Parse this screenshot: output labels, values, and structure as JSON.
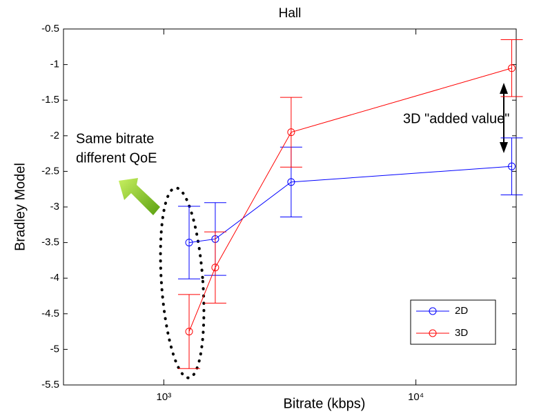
{
  "chart_data": {
    "type": "line",
    "title": "Hall",
    "x_label": "Bitrate (kbps)",
    "y_label": "Bradley Model",
    "x_scale": "log",
    "x": [
      1260,
      1600,
      3200,
      24000
    ],
    "series": [
      {
        "name": "2D",
        "color": "#0000ff",
        "values": [
          -3.5,
          -3.45,
          -2.65,
          -2.43
        ],
        "errors": [
          0.51,
          0.51,
          0.49,
          0.4
        ]
      },
      {
        "name": "3D",
        "color": "#ff0000",
        "values": [
          -4.75,
          -3.85,
          -1.95,
          -1.05
        ],
        "errors": [
          0.52,
          0.5,
          0.49,
          0.4
        ]
      }
    ],
    "xlim": [
      400,
      25000
    ],
    "xticks": [
      {
        "value": 1000,
        "label": "10³"
      },
      {
        "value": 10000,
        "label": "10⁴"
      }
    ],
    "ylim": [
      -5.5,
      -0.5
    ],
    "yticks": [
      -5.5,
      -5,
      -4.5,
      -4,
      -3.5,
      -3,
      -2.5,
      -2,
      -1.5,
      -1,
      -0.5
    ],
    "legend_position": "lower right",
    "annotations": [
      "Same bitrate",
      "different QoE",
      "3D \"added value\""
    ]
  }
}
